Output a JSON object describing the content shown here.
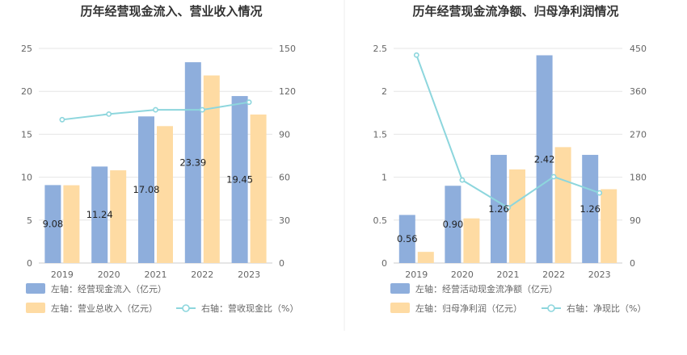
{
  "colors": {
    "bar_primary": "#8eaedc",
    "bar_secondary": "#fedba3",
    "line": "#8dd6dd",
    "grid": "#e6e6e6",
    "divider": "#eeeeee"
  },
  "chart_data": [
    {
      "type": "bar",
      "title": "历年经营现金流入、营业收入情况",
      "categories": [
        "2019",
        "2020",
        "2021",
        "2022",
        "2023"
      ],
      "ylim": [
        0,
        25
      ],
      "yticks": [
        0,
        5,
        10,
        15,
        20,
        25
      ],
      "y2lim": [
        0,
        150
      ],
      "y2ticks": [
        0,
        30,
        60,
        90,
        120,
        150
      ],
      "grid": true,
      "legend_position": "bottom-left",
      "series": [
        {
          "name": "左轴：经营现金流入（亿元）",
          "type": "bar",
          "axis": "left",
          "values": [
            9.08,
            11.24,
            17.08,
            23.39,
            19.45
          ],
          "labels": [
            "9.08",
            "11.24",
            "17.08",
            "23.39",
            "19.45"
          ]
        },
        {
          "name": "左轴：营业总收入（亿元）",
          "type": "bar",
          "axis": "left",
          "values": [
            9.06,
            10.8,
            15.95,
            21.85,
            17.3
          ]
        },
        {
          "name": "右轴：营收现金比（%）",
          "type": "line",
          "axis": "right",
          "values": [
            100.2,
            104.1,
            107.1,
            107.1,
            112.4
          ]
        }
      ]
    },
    {
      "type": "bar",
      "title": "历年经营现金流净额、归母净利润情况",
      "categories": [
        "2019",
        "2020",
        "2021",
        "2022",
        "2023"
      ],
      "ylim": [
        0,
        2.5
      ],
      "yticks": [
        0,
        0.5,
        1,
        1.5,
        2,
        2.5
      ],
      "ytick_labels": [
        "0",
        "0.5",
        "1",
        "1.5",
        "2",
        "2.5"
      ],
      "y2lim": [
        0,
        450
      ],
      "y2ticks": [
        0,
        90,
        180,
        270,
        360,
        450
      ],
      "grid": true,
      "legend_position": "bottom-left",
      "series": [
        {
          "name": "左轴：经营活动现金流净额（亿元）",
          "type": "bar",
          "axis": "left",
          "values": [
            0.56,
            0.9,
            1.26,
            2.42,
            1.26
          ],
          "labels": [
            "0.56",
            "0.90",
            "1.26",
            "2.42",
            "1.26"
          ]
        },
        {
          "name": "左轴：归母净利润（亿元）",
          "type": "bar",
          "axis": "left",
          "values": [
            0.13,
            0.52,
            1.09,
            1.35,
            0.86
          ]
        },
        {
          "name": "右轴：净现比（%）",
          "type": "line",
          "axis": "right",
          "values": [
            436,
            174,
            116,
            181,
            147
          ]
        }
      ]
    }
  ]
}
